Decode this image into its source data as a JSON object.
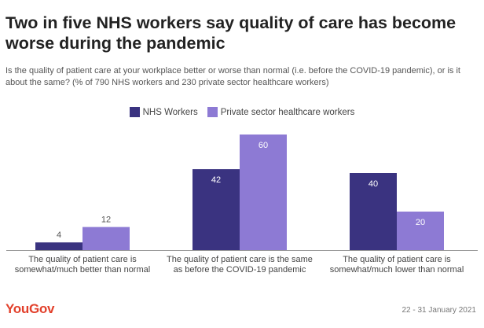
{
  "title": "Two in five NHS workers say quality of care has become worse during the pandemic",
  "subtitle": "Is the quality of patient care at your workplace better or worse than normal (i.e. before the COVID-19 pandemic), or is it about the same? (% of 790 NHS workers and 230 private sector healthcare workers)",
  "colors": {
    "nhs": "#3a3380",
    "private": "#8d7ad4",
    "brand": "#e2402b"
  },
  "chart_data": {
    "type": "bar",
    "categories": [
      "The quality of patient care is somewhat/much better than normal",
      "The quality of patient care is the same as before the COVID-19 pandemic",
      "The quality of patient care is somewhat/much lower than normal"
    ],
    "series": [
      {
        "name": "NHS Workers",
        "values": [
          4,
          42,
          40
        ]
      },
      {
        "name": "Private sector healthcare workers",
        "values": [
          12,
          60,
          20
        ]
      }
    ],
    "ylim": [
      0,
      60
    ],
    "legend": "top-center",
    "grid": false
  },
  "footer": {
    "logo": "YouGov",
    "date": "22 - 31 January 2021"
  }
}
